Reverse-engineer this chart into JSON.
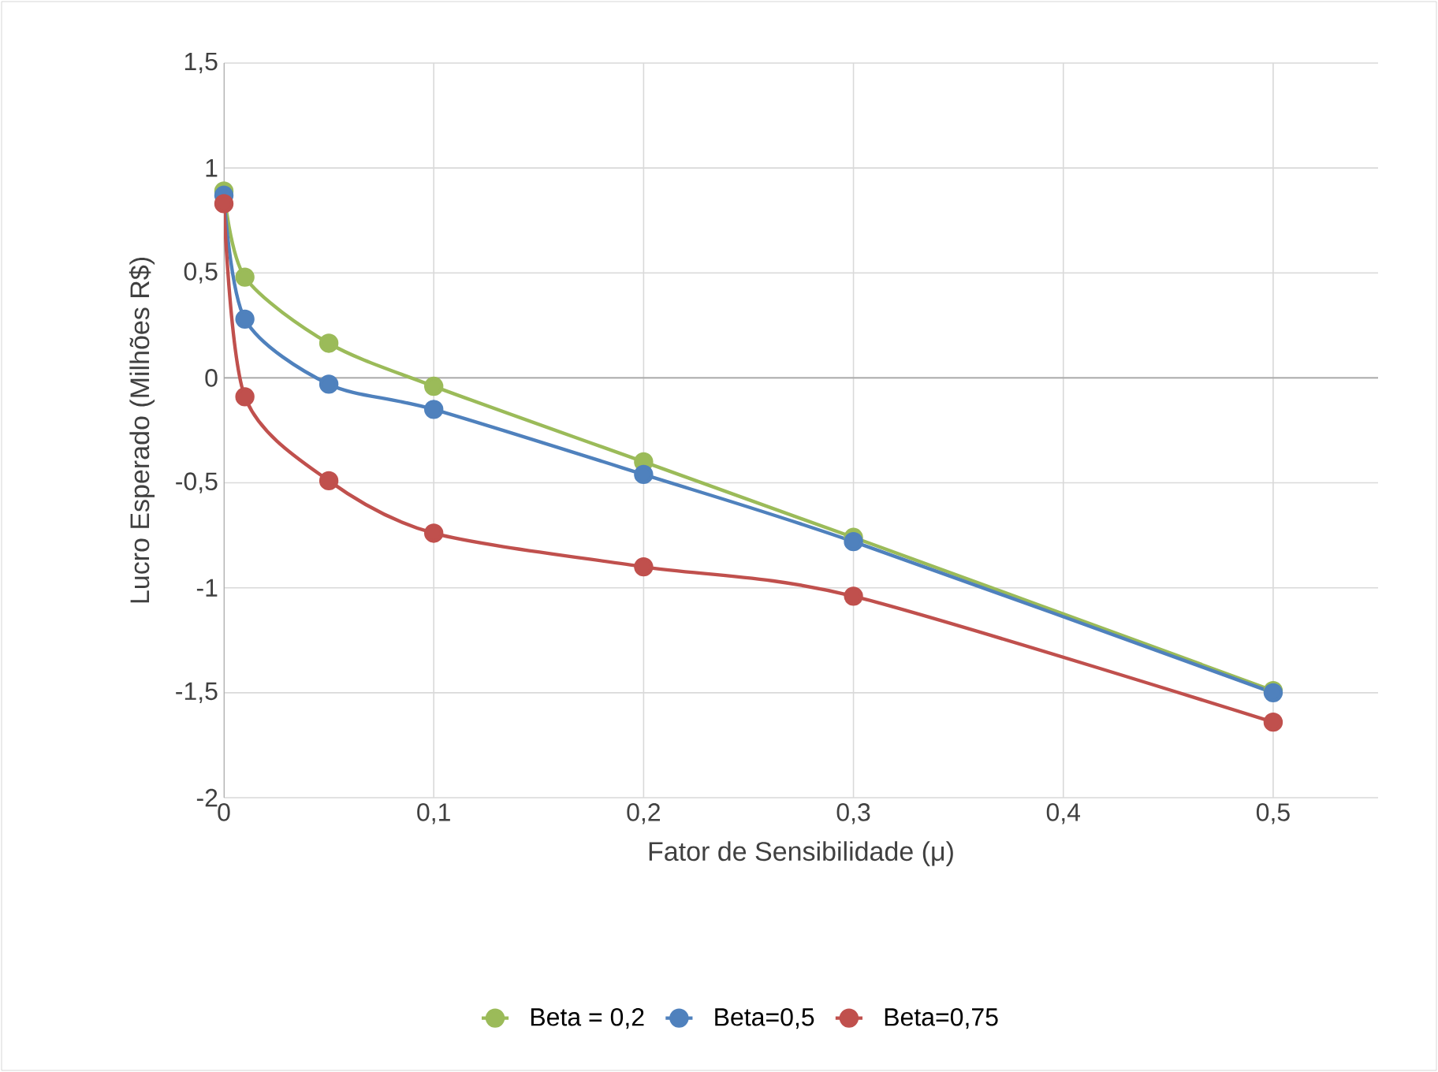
{
  "chart_data": {
    "type": "line",
    "xlabel": "Fator de Sensibilidade (μ)",
    "ylabel": "Lucro Esperado (Milhões R$)",
    "x": [
      0,
      0.01,
      0.05,
      0.1,
      0.2,
      0.3,
      0.5
    ],
    "series": [
      {
        "name": "Beta = 0,2",
        "color": "#9bbb59",
        "values": [
          0.89,
          0.48,
          0.165,
          -0.04,
          -0.4,
          -0.76,
          -1.49
        ]
      },
      {
        "name": "Beta=0,5",
        "color": "#4f81bd",
        "values": [
          0.87,
          0.28,
          -0.03,
          -0.15,
          -0.46,
          -0.78,
          -1.5
        ]
      },
      {
        "name": "Beta=0,75",
        "color": "#c0504d",
        "values": [
          0.83,
          -0.09,
          -0.49,
          -0.74,
          -0.9,
          -1.04,
          -1.64
        ]
      }
    ],
    "xlim": [
      0,
      0.55
    ],
    "xticks": [
      0,
      {
        "value": 0.1,
        "label": "0,1"
      },
      {
        "value": 0.2,
        "label": "0,2"
      },
      {
        "value": 0.3,
        "label": "0,3"
      },
      {
        "value": 0.4,
        "label": "0,4"
      },
      {
        "value": 0.5,
        "label": "0,5"
      }
    ],
    "ylim": [
      -2,
      1.5
    ],
    "yticks": [
      -2,
      {
        "value": -1.5,
        "label": "-1,5"
      },
      -1,
      {
        "value": -0.5,
        "label": "-0,5"
      },
      0,
      {
        "value": 0.5,
        "label": "0,5"
      },
      1,
      {
        "value": 1.5,
        "label": "1,5"
      }
    ],
    "grid": true,
    "legend": "bottom",
    "marker": "circle",
    "line_style": "solid"
  }
}
